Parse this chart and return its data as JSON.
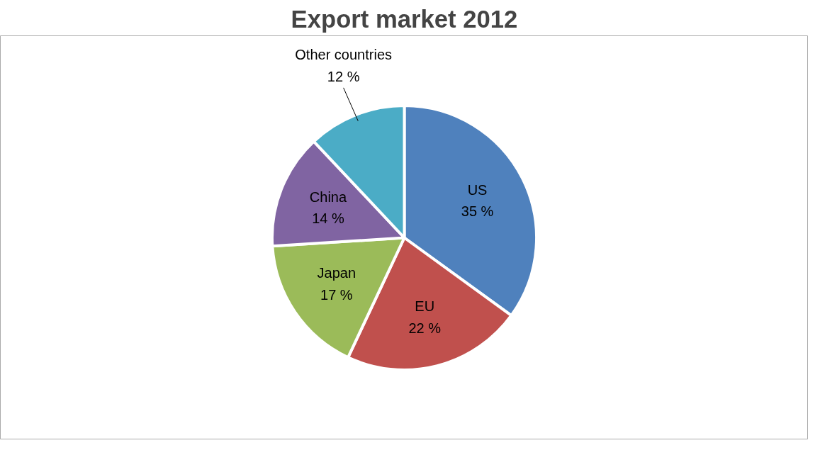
{
  "chart_data": {
    "type": "pie",
    "title": "Export market 2012",
    "categories": [
      "US",
      "EU",
      "Japan",
      "China",
      "Other countries"
    ],
    "values": [
      35,
      22,
      17,
      14,
      12
    ],
    "colors": [
      "#4f81bd",
      "#c0504d",
      "#9bbb59",
      "#8064a2",
      "#4bacc6"
    ],
    "value_labels": [
      "35 %",
      "22 %",
      "17 %",
      "14 %",
      "12 %"
    ]
  }
}
